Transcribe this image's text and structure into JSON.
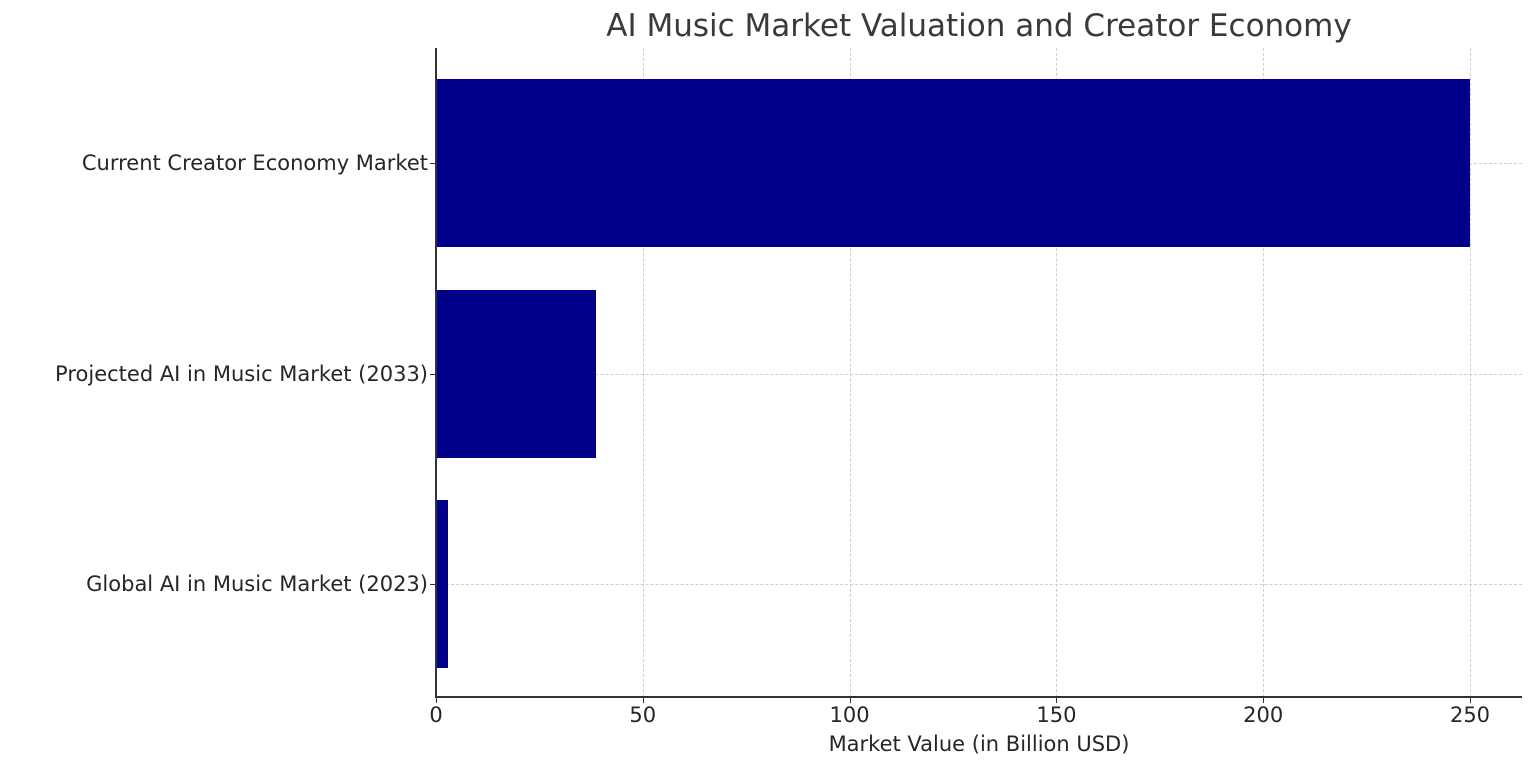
{
  "chart_data": {
    "type": "bar",
    "orientation": "horizontal",
    "title": "AI Music Market Valuation and Creator Economy",
    "xlabel": "Market Value (in Billion USD)",
    "ylabel": "",
    "categories": [
      "Global AI in Music Market (2023)",
      "Projected AI in Music Market (2033)",
      "Current Creator Economy Market"
    ],
    "values": [
      2.8,
      38.7,
      250
    ],
    "xlim": [
      0,
      262.5
    ],
    "xticks": [
      0,
      50,
      100,
      150,
      200,
      250
    ],
    "xtick_labels": [
      "0",
      "50",
      "100",
      "150",
      "200",
      "250"
    ],
    "grid": true,
    "grid_style": "dashed",
    "bar_color": "#00008b",
    "legend": null
  }
}
